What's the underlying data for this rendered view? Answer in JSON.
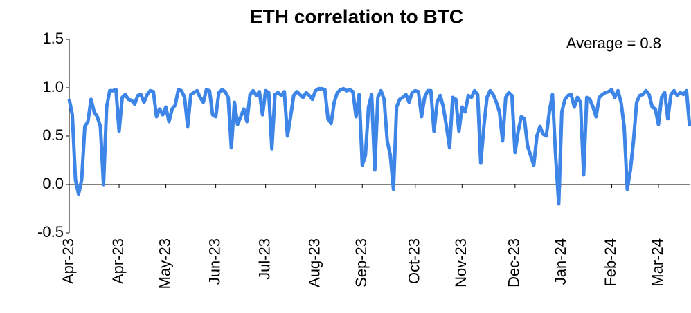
{
  "chart_data": {
    "type": "line",
    "title": "ETH correlation to BTC",
    "annotation": "Average = 0.8",
    "ylim": [
      -0.5,
      1.5
    ],
    "yticks": [
      {
        "value": -0.5,
        "label": "-0.5"
      },
      {
        "value": 0,
        "label": "0.0"
      },
      0.5,
      {
        "value": 1,
        "label": "1.0"
      },
      1.5
    ],
    "categories": [
      "Apr-23",
      null,
      null,
      null,
      null,
      null,
      null,
      null,
      null,
      null,
      null,
      null,
      null,
      null,
      null,
      null,
      "Apr-23",
      null,
      null,
      null,
      null,
      null,
      null,
      null,
      null,
      null,
      null,
      null,
      null,
      null,
      null,
      "May-23",
      null,
      null,
      null,
      null,
      null,
      null,
      null,
      null,
      null,
      null,
      null,
      null,
      null,
      null,
      null,
      "Jun-23",
      null,
      null,
      null,
      null,
      null,
      null,
      null,
      null,
      null,
      null,
      null,
      null,
      null,
      null,
      null,
      "Jul-23",
      null,
      null,
      null,
      null,
      null,
      null,
      null,
      null,
      null,
      null,
      null,
      null,
      null,
      null,
      null,
      "Aug-23",
      null,
      null,
      null,
      null,
      null,
      null,
      null,
      null,
      null,
      null,
      null,
      null,
      null,
      null,
      "Sep-23",
      null,
      null,
      null,
      null,
      null,
      null,
      null,
      null,
      null,
      null,
      null,
      null,
      null,
      null,
      null,
      null,
      "Oct-23",
      null,
      null,
      null,
      null,
      null,
      null,
      null,
      null,
      null,
      null,
      null,
      null,
      null,
      null,
      "Nov-23",
      null,
      null,
      null,
      null,
      null,
      null,
      null,
      null,
      null,
      null,
      null,
      null,
      null,
      null,
      null,
      null,
      "Dec-23",
      null,
      null,
      null,
      null,
      null,
      null,
      null,
      null,
      null,
      null,
      null,
      null,
      null,
      null,
      "Jan-24",
      null,
      null,
      null,
      null,
      null,
      null,
      null,
      null,
      null,
      null,
      null,
      null,
      null,
      null,
      null,
      "Feb-24",
      null,
      null,
      null,
      null,
      null,
      null,
      null,
      null,
      null,
      null,
      null,
      null,
      null,
      null,
      "Mar-24",
      null,
      null,
      null,
      null,
      null,
      null,
      null,
      null,
      null,
      null
    ],
    "series": [
      {
        "color": "#3d85e6",
        "values": [
          0.88,
          0.72,
          0.05,
          -0.1,
          0.05,
          0.6,
          0.65,
          0.88,
          0.75,
          0.7,
          0.6,
          0.0,
          0.8,
          0.97,
          0.97,
          0.98,
          0.55,
          0.9,
          0.93,
          0.88,
          0.87,
          0.83,
          0.92,
          0.93,
          0.85,
          0.93,
          0.97,
          0.96,
          0.7,
          0.78,
          0.72,
          0.8,
          0.65,
          0.78,
          0.82,
          0.98,
          0.97,
          0.9,
          0.6,
          0.93,
          0.95,
          0.97,
          0.9,
          0.85,
          0.98,
          0.97,
          0.72,
          0.7,
          0.95,
          0.98,
          0.96,
          0.9,
          0.38,
          0.85,
          0.62,
          0.7,
          0.78,
          0.65,
          0.93,
          0.97,
          0.92,
          0.96,
          0.72,
          0.97,
          0.95,
          0.37,
          0.93,
          0.95,
          0.92,
          0.96,
          0.5,
          0.7,
          0.92,
          0.96,
          0.93,
          0.9,
          0.95,
          0.92,
          0.88,
          0.97,
          0.99,
          0.99,
          0.98,
          0.68,
          0.63,
          0.85,
          0.95,
          0.98,
          0.99,
          0.97,
          0.98,
          0.96,
          0.7,
          0.93,
          0.2,
          0.3,
          0.8,
          0.93,
          0.15,
          0.9,
          0.97,
          0.88,
          0.45,
          0.3,
          -0.05,
          0.8,
          0.88,
          0.9,
          0.93,
          0.85,
          0.95,
          0.97,
          0.96,
          0.7,
          0.9,
          0.97,
          0.97,
          0.55,
          0.85,
          0.92,
          0.8,
          0.6,
          0.38,
          0.9,
          0.88,
          0.55,
          0.8,
          0.75,
          0.92,
          0.9,
          0.97,
          0.93,
          0.22,
          0.6,
          0.9,
          0.97,
          0.93,
          0.85,
          0.75,
          0.45,
          0.9,
          0.95,
          0.92,
          0.33,
          0.55,
          0.7,
          0.68,
          0.4,
          0.3,
          0.2,
          0.5,
          0.6,
          0.52,
          0.5,
          0.75,
          0.93,
          0.3,
          -0.2,
          0.75,
          0.88,
          0.92,
          0.93,
          0.8,
          0.9,
          0.85,
          0.1,
          0.9,
          0.88,
          0.8,
          0.7,
          0.9,
          0.93,
          0.95,
          0.96,
          0.98,
          0.9,
          0.97,
          0.85,
          0.6,
          -0.05,
          0.15,
          0.45,
          0.85,
          0.92,
          0.93,
          0.97,
          0.93,
          0.8,
          0.78,
          0.62,
          0.9,
          0.95,
          0.68,
          0.93,
          0.97,
          0.92,
          0.95,
          0.93,
          0.97,
          0.6
        ]
      }
    ]
  }
}
